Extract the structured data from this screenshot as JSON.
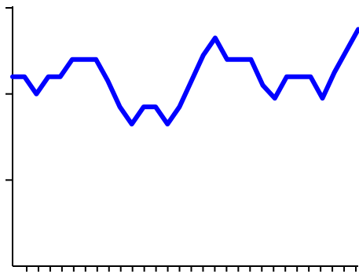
{
  "chart_data": {
    "type": "line",
    "title": "",
    "xlabel": "",
    "ylabel": "",
    "x": [
      0,
      1,
      2,
      3,
      4,
      5,
      6,
      7,
      8,
      9,
      10,
      11,
      12,
      13,
      14,
      15,
      16,
      17,
      18,
      19,
      20,
      21,
      22,
      23,
      24,
      25,
      26,
      27,
      28,
      29
    ],
    "series": [
      {
        "values": [
          2.2,
          2.2,
          2.0,
          2.2,
          2.2,
          2.4,
          2.4,
          2.4,
          2.15,
          1.85,
          1.65,
          1.85,
          1.85,
          1.65,
          1.85,
          2.15,
          2.45,
          2.65,
          2.4,
          2.4,
          2.4,
          2.1,
          1.95,
          2.2,
          2.2,
          2.2,
          1.95,
          2.25,
          2.5,
          2.75
        ],
        "color": "#0000ff"
      }
    ],
    "ylim": [
      0,
      3
    ],
    "xlim": [
      0,
      29
    ],
    "y_ticks": [
      1,
      2,
      3
    ],
    "x_tick_count": 29,
    "grid": false,
    "axis_color": "#000000"
  }
}
